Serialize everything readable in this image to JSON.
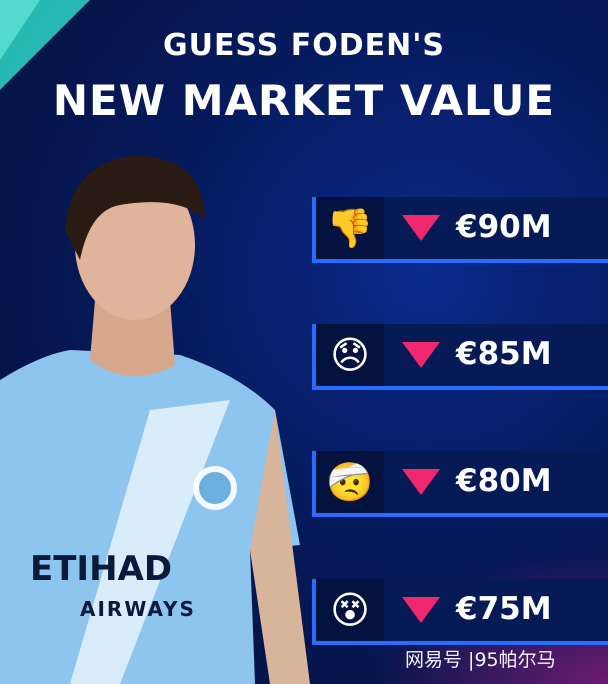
{
  "header": {
    "line1": "GUESS FODEN'S",
    "line2": "NEW MARKET VALUE"
  },
  "options": [
    {
      "icon": "thumbs-down-icon",
      "emoji": "👎",
      "price": "€90M",
      "trend": "down"
    },
    {
      "icon": "disappointed-face-icon",
      "emoji": "😞",
      "price": "€85M",
      "trend": "down"
    },
    {
      "icon": "head-bandage-face-icon",
      "emoji": "🤕",
      "price": "€80M",
      "trend": "down"
    },
    {
      "icon": "dizzy-face-icon",
      "emoji": "😵",
      "price": "€75M",
      "trend": "down"
    }
  ],
  "jersey": {
    "sponsor": "ETIHAD",
    "sponsor_sub": "AIRWAYS"
  },
  "watermark": "网易号 |95帕尔马",
  "colors": {
    "accent": "#2a6cff",
    "down_arrow": "#f0286e",
    "jersey": "#8ec5ee"
  }
}
